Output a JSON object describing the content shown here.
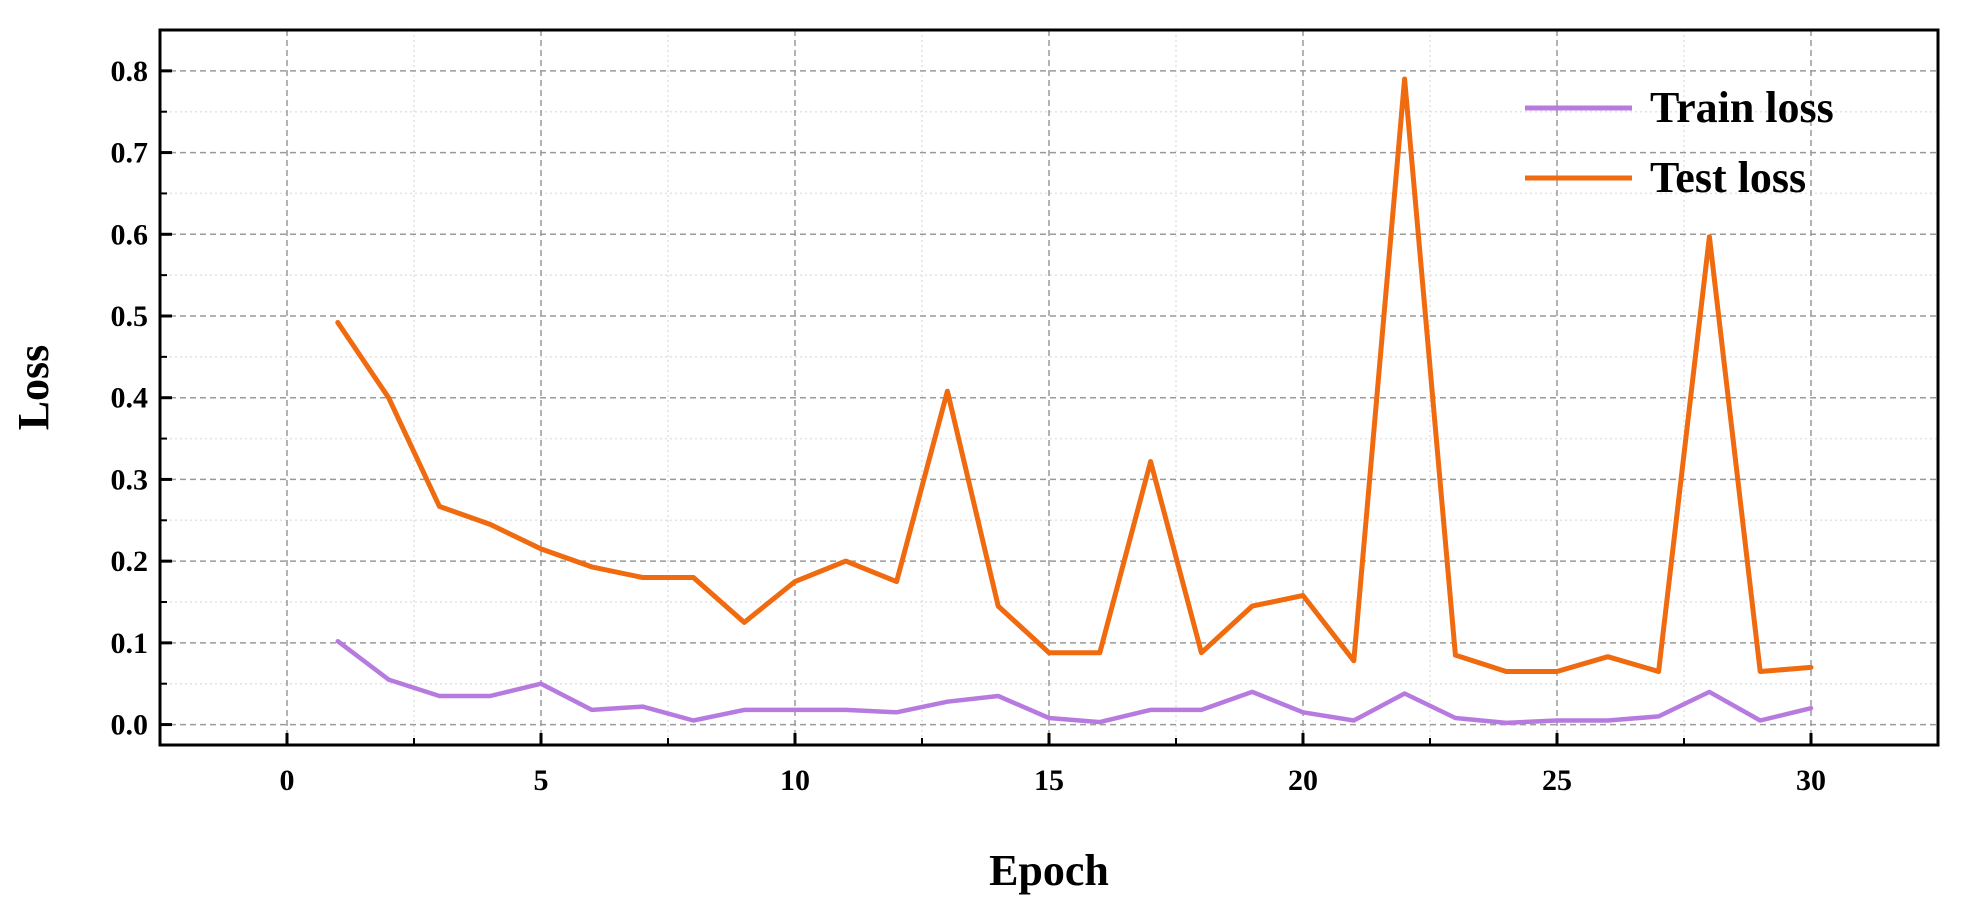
{
  "chart_data": {
    "type": "line",
    "xlabel": "Epoch",
    "ylabel": "Loss",
    "xlim": [
      -2.5,
      32.5
    ],
    "ylim": [
      -0.025,
      0.85
    ],
    "xticks": [
      0,
      5,
      10,
      15,
      20,
      25,
      30
    ],
    "xtick_labels": [
      "0",
      "5",
      "10",
      "15",
      "20",
      "25",
      "30"
    ],
    "yticks": [
      0.0,
      0.1,
      0.2,
      0.3,
      0.4,
      0.5,
      0.6,
      0.7,
      0.8
    ],
    "ytick_labels": [
      "0.0",
      "0.1",
      "0.2",
      "0.3",
      "0.4",
      "0.5",
      "0.6",
      "0.7",
      "0.8"
    ],
    "grid": true,
    "legend_position": "top-right",
    "x": [
      1,
      2,
      3,
      4,
      5,
      6,
      7,
      8,
      9,
      10,
      11,
      12,
      13,
      14,
      15,
      16,
      17,
      18,
      19,
      20,
      21,
      22,
      23,
      24,
      25,
      26,
      27,
      28,
      29,
      30
    ],
    "series": [
      {
        "name": "Train loss",
        "color": "#b77be0",
        "values": [
          0.102,
          0.055,
          0.035,
          0.035,
          0.05,
          0.018,
          0.022,
          0.005,
          0.018,
          0.018,
          0.018,
          0.015,
          0.028,
          0.035,
          0.008,
          0.003,
          0.018,
          0.018,
          0.04,
          0.015,
          0.005,
          0.038,
          0.008,
          0.002,
          0.005,
          0.005,
          0.01,
          0.04,
          0.005,
          0.02
        ]
      },
      {
        "name": "Test loss",
        "color": "#f06a10",
        "values": [
          0.492,
          0.4,
          0.267,
          0.245,
          0.215,
          0.193,
          0.18,
          0.18,
          0.125,
          0.175,
          0.2,
          0.175,
          0.408,
          0.145,
          0.088,
          0.088,
          0.322,
          0.088,
          0.145,
          0.158,
          0.078,
          0.79,
          0.085,
          0.065,
          0.065,
          0.083,
          0.065,
          0.597,
          0.065,
          0.07
        ]
      }
    ]
  }
}
